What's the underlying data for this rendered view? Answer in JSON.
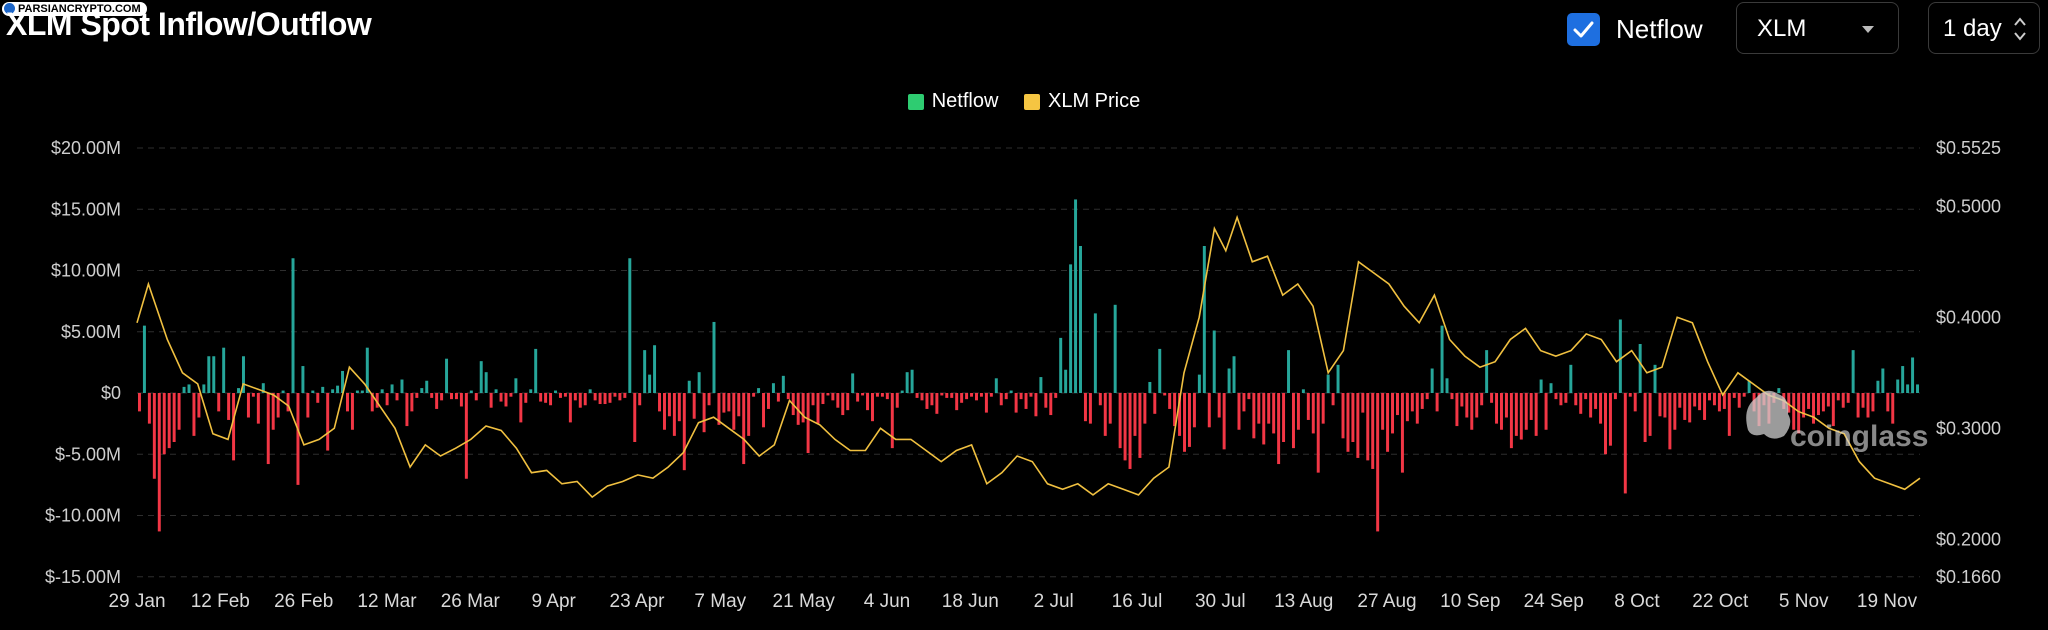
{
  "page": {
    "title": "XLM Spot Inflow/Outflow"
  },
  "watermark": {
    "source": "PARSIANCRYPTO.COM",
    "brand": "coinglass"
  },
  "controls": {
    "netflow_checkbox": {
      "label": "Netflow",
      "checked": true
    },
    "coin_select": {
      "value": "XLM"
    },
    "interval_select": {
      "value": "1 day"
    }
  },
  "colors": {
    "positive": "#26a69a",
    "negative": "#f23645",
    "price": "#f0c040",
    "legend_netflow": "#2ecc71",
    "legend_price": "#f5c542",
    "grid": "#2e2e2e"
  },
  "chart_data": {
    "type": "bar",
    "legend": [
      {
        "name": "Netflow",
        "color": "#2ecc71"
      },
      {
        "name": "XLM Price",
        "color": "#f5c542"
      }
    ],
    "y_left": {
      "ticks": [
        "$20.00M",
        "$15.00M",
        "$10.00M",
        "$5.00M",
        "$0",
        "$-5.00M",
        "$-10.00M",
        "$-15.00M"
      ],
      "range": [
        -15,
        20
      ],
      "unit": "M"
    },
    "y_right": {
      "ticks": [
        "$0.5525",
        "$0.5000",
        "$0.4000",
        "$0.3000",
        "$0.2000",
        "$0.1660"
      ],
      "range": [
        0.166,
        0.5525
      ]
    },
    "x_ticks": [
      "29 Jan",
      "12 Feb",
      "26 Feb",
      "12 Mar",
      "26 Mar",
      "9 Apr",
      "23 Apr",
      "7 May",
      "21 May",
      "4 Jun",
      "18 Jun",
      "2 Jul",
      "16 Jul",
      "30 Jul",
      "13 Aug",
      "27 Aug",
      "10 Sep",
      "24 Sep",
      "8 Oct",
      "22 Oct",
      "5 Nov",
      "19 Nov"
    ],
    "series": [
      {
        "name": "Netflow",
        "values": [
          -1.5,
          5.5,
          -2.5,
          -7,
          -11.3,
          -5,
          -4.5,
          -4,
          -3,
          0.5,
          0.7,
          -3.5,
          -2,
          0.7,
          3,
          3,
          -1.5,
          3.7,
          -2.2,
          -5.5,
          0.4,
          3,
          -2,
          -0.3,
          -2.5,
          0.8,
          -5.8,
          -3,
          -2,
          0.2,
          -1.5,
          11,
          -7.5,
          2.2,
          -2,
          0.2,
          -0.8,
          0.5,
          -4.7,
          0.3,
          0.6,
          1.8,
          -1.5,
          -3,
          0.2,
          0.2,
          3.7,
          -1.5,
          -1.2,
          0.3,
          -1,
          0.7,
          -0.6,
          1.1,
          -2.7,
          -1.5,
          -0.4,
          0.4,
          1,
          -0.4,
          -1.3,
          -0.6,
          2.8,
          -0.5,
          -0.5,
          -1.1,
          -7,
          0.2,
          -0.6,
          2.6,
          1.7,
          -1.2,
          0.3,
          -0.7,
          -1.1,
          -0.3,
          1.2,
          -2.4,
          -0.8,
          0.3,
          3.6,
          -0.7,
          -0.8,
          -1,
          0.2,
          -0.4,
          -0.3,
          -2.4,
          -0.6,
          -1.2,
          -1,
          0.3,
          -0.6,
          -0.9,
          -0.9,
          -0.8,
          -0.3,
          -0.6,
          -0.4,
          11,
          -4,
          -1,
          3.5,
          1.5,
          3.9,
          -1.5,
          -3,
          -1.9,
          -3.5,
          -2.3,
          -6.3,
          1,
          -2.1,
          1.7,
          -3.2,
          -1,
          5.8,
          -2.6,
          -1.6,
          -1.5,
          -3,
          -1.9,
          -5.8,
          -3.5,
          -0.3,
          0.4,
          -2.8,
          -1.3,
          0.8,
          -0.7,
          1.4,
          -0.5,
          -1.8,
          -2.6,
          -2.4,
          -4.9,
          -1,
          -2.5,
          -0.9,
          -0.2,
          -0.6,
          -1.2,
          -1.8,
          -1.4,
          1.6,
          -0.7,
          -0.2,
          -1.4,
          -2.3,
          -0.3,
          -0.3,
          -0.5,
          -4.5,
          -1.2,
          0.2,
          1.7,
          1.9,
          -0.4,
          -0.6,
          -1.3,
          -1,
          -1.7,
          -0.2,
          -0.4,
          -0.4,
          -1.4,
          -0.8,
          -0.5,
          -0.3,
          -0.6,
          -0.3,
          -1.6,
          -0.3,
          1.2,
          -1,
          -0.5,
          0.2,
          -1.6,
          -0.5,
          -1.3,
          -0.3,
          -1.9,
          1.3,
          -1.2,
          -1.8,
          -0.4,
          4.5,
          1.9,
          10.5,
          15.8,
          12,
          -2.3,
          -2.5,
          6.5,
          -1,
          -3.5,
          -2.5,
          7.2,
          -4.5,
          -5.5,
          -6.2,
          -3.5,
          -5.3,
          -2.5,
          0.9,
          -1.7,
          3.6,
          -0.2,
          -1.3,
          -2.7,
          -3.5,
          -4.8,
          -4.4,
          -2.8,
          1.5,
          12,
          -2.8,
          5.1,
          -2,
          -4.6,
          2,
          3,
          -3,
          -1.5,
          -0.5,
          -3.7,
          -2.5,
          -4.2,
          -2.5,
          -3.3,
          -5.8,
          -4,
          3.5,
          -4.5,
          -3,
          0.3,
          -2.2,
          -3.3,
          -6.5,
          -2.5,
          1.5,
          -1,
          2.3,
          -3.7,
          -4.8,
          -4,
          -5.3,
          -1.6,
          -5.5,
          -6.2,
          -11.3,
          -3,
          -4.8,
          -3.3,
          -1.8,
          -6.5,
          -2.3,
          -1.5,
          -2.5,
          -1.3,
          -0.5,
          2,
          -1.5,
          5.5,
          1.2,
          -0.5,
          -2.7,
          -1.1,
          -2,
          -3,
          -2,
          -1,
          3.5,
          -0.8,
          -2.5,
          -3,
          -2,
          -4.5,
          -3.5,
          -3.8,
          -3,
          -2.2,
          -3.5,
          1.1,
          -3,
          0.8,
          -0.5,
          -1,
          -0.8,
          2.3,
          -1,
          -1.7,
          -0.5,
          -2,
          -1.3,
          -2.5,
          -5,
          -4.3,
          -0.5,
          6,
          -8.2,
          -0.3,
          -1.5,
          4,
          -4,
          -3.5,
          2.3,
          -1.9,
          -2,
          -4.6,
          -3,
          -1.2,
          -2.2,
          -2.4,
          -1.1,
          -1.4,
          -2.2,
          -0.6,
          -1,
          -1.5,
          -1.3,
          -3.5,
          -0.4,
          -1.2,
          -0.3,
          1,
          -1.5,
          -2.7,
          -1,
          -2.5,
          -0.8,
          0.4,
          -1.3,
          -1.6,
          -3,
          -3.3,
          -2,
          -1.3,
          -2.5,
          -1.8,
          -1.5,
          -1.1,
          -2.7,
          -0.6,
          -1.2,
          -0.8,
          3.5,
          -2,
          -1.2,
          -2,
          -1.5,
          1,
          2,
          -1.5,
          -2.5,
          1.1,
          2.2,
          0.7,
          2.9,
          0.7
        ],
        "colors_by_sign": {
          "positive": "#26a69a",
          "negative": "#f23645"
        }
      },
      {
        "name": "XLM Price",
        "points": [
          [
            0,
            0.395
          ],
          [
            3,
            0.43
          ],
          [
            8,
            0.38
          ],
          [
            12,
            0.35
          ],
          [
            16,
            0.34
          ],
          [
            20,
            0.295
          ],
          [
            24,
            0.29
          ],
          [
            28,
            0.34
          ],
          [
            32,
            0.335
          ],
          [
            36,
            0.33
          ],
          [
            40,
            0.32
          ],
          [
            44,
            0.285
          ],
          [
            48,
            0.29
          ],
          [
            52,
            0.3
          ],
          [
            56,
            0.355
          ],
          [
            60,
            0.34
          ],
          [
            64,
            0.32
          ],
          [
            68,
            0.3
          ],
          [
            72,
            0.265
          ],
          [
            76,
            0.285
          ],
          [
            80,
            0.275
          ],
          [
            84,
            0.282
          ],
          [
            88,
            0.29
          ],
          [
            92,
            0.302
          ],
          [
            96,
            0.298
          ],
          [
            100,
            0.282
          ],
          [
            104,
            0.26
          ],
          [
            108,
            0.262
          ],
          [
            112,
            0.25
          ],
          [
            116,
            0.252
          ],
          [
            120,
            0.238
          ],
          [
            124,
            0.248
          ],
          [
            128,
            0.252
          ],
          [
            132,
            0.258
          ],
          [
            136,
            0.255
          ],
          [
            140,
            0.265
          ],
          [
            144,
            0.278
          ],
          [
            148,
            0.305
          ],
          [
            152,
            0.31
          ],
          [
            156,
            0.3
          ],
          [
            160,
            0.29
          ],
          [
            164,
            0.275
          ],
          [
            168,
            0.285
          ],
          [
            172,
            0.325
          ],
          [
            176,
            0.31
          ],
          [
            180,
            0.303
          ],
          [
            184,
            0.29
          ],
          [
            188,
            0.28
          ],
          [
            192,
            0.28
          ],
          [
            196,
            0.3
          ],
          [
            200,
            0.29
          ],
          [
            204,
            0.29
          ],
          [
            208,
            0.28
          ],
          [
            212,
            0.27
          ],
          [
            216,
            0.28
          ],
          [
            220,
            0.285
          ],
          [
            224,
            0.25
          ],
          [
            228,
            0.26
          ],
          [
            232,
            0.275
          ],
          [
            236,
            0.27
          ],
          [
            240,
            0.25
          ],
          [
            244,
            0.245
          ],
          [
            248,
            0.25
          ],
          [
            252,
            0.24
          ],
          [
            256,
            0.25
          ],
          [
            260,
            0.245
          ],
          [
            264,
            0.24
          ],
          [
            268,
            0.255
          ],
          [
            272,
            0.265
          ],
          [
            276,
            0.35
          ],
          [
            280,
            0.4
          ],
          [
            284,
            0.48
          ],
          [
            287,
            0.46
          ],
          [
            290,
            0.49
          ],
          [
            294,
            0.45
          ],
          [
            298,
            0.455
          ],
          [
            302,
            0.42
          ],
          [
            306,
            0.43
          ],
          [
            310,
            0.41
          ],
          [
            314,
            0.35
          ],
          [
            318,
            0.37
          ],
          [
            322,
            0.45
          ],
          [
            326,
            0.44
          ],
          [
            330,
            0.43
          ],
          [
            334,
            0.41
          ],
          [
            338,
            0.395
          ],
          [
            342,
            0.42
          ],
          [
            346,
            0.38
          ],
          [
            350,
            0.365
          ],
          [
            354,
            0.355
          ],
          [
            358,
            0.36
          ],
          [
            362,
            0.38
          ],
          [
            366,
            0.39
          ],
          [
            370,
            0.37
          ],
          [
            374,
            0.365
          ],
          [
            378,
            0.37
          ],
          [
            382,
            0.385
          ],
          [
            386,
            0.38
          ],
          [
            390,
            0.36
          ],
          [
            394,
            0.37
          ],
          [
            398,
            0.35
          ],
          [
            402,
            0.355
          ],
          [
            406,
            0.4
          ],
          [
            410,
            0.395
          ],
          [
            414,
            0.36
          ],
          [
            418,
            0.33
          ],
          [
            422,
            0.35
          ],
          [
            426,
            0.34
          ],
          [
            430,
            0.33
          ],
          [
            434,
            0.325
          ],
          [
            438,
            0.315
          ],
          [
            442,
            0.31
          ],
          [
            446,
            0.3
          ],
          [
            450,
            0.295
          ],
          [
            454,
            0.27
          ],
          [
            458,
            0.255
          ],
          [
            462,
            0.25
          ],
          [
            466,
            0.245
          ],
          [
            470,
            0.255
          ]
        ],
        "x_span": 470,
        "color": "#f0c040"
      }
    ],
    "grid": true,
    "legend_position": "top-center"
  }
}
